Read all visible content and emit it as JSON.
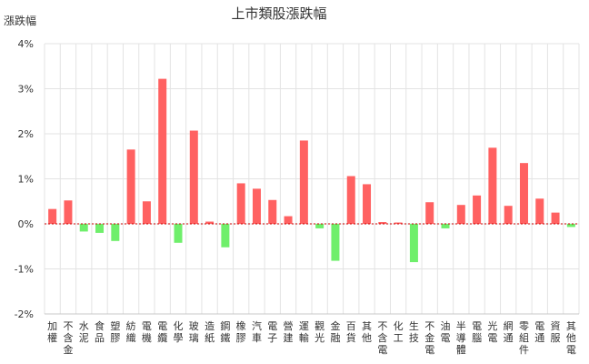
{
  "chart_data": {
    "type": "bar",
    "title": "上市類股漲跌幅",
    "ylabel": "漲跌幅",
    "xlabel": "",
    "ylim": [
      -2,
      4
    ],
    "yticks": [
      "-2%",
      "-1%",
      "0%",
      "1%",
      "2%",
      "3%",
      "4%"
    ],
    "grid": true,
    "legend": "none",
    "colors": {
      "up": "#ff6161",
      "down": "#6fef6b",
      "grid": "#e3e3e3",
      "axis": "#c8c8c8",
      "zero": "#cc0000"
    },
    "categories": [
      "加權",
      "不含金",
      "水泥",
      "食品",
      "塑膠",
      "紡織",
      "電機",
      "電纜",
      "化學",
      "玻璃",
      "造紙",
      "鋼鐵",
      "橡膠",
      "汽車",
      "電子",
      "營建",
      "運輸",
      "觀光",
      "金融",
      "百貨",
      "其他",
      "不含電",
      "化工",
      "生技",
      "不金電",
      "油電",
      "半導體",
      "電腦",
      "光電",
      "網通",
      "零組件",
      "電通",
      "資服",
      "其他電"
    ],
    "values": [
      0.33,
      0.52,
      -0.17,
      -0.2,
      -0.38,
      1.65,
      0.5,
      3.22,
      -0.42,
      2.07,
      0.05,
      -0.52,
      0.9,
      0.78,
      0.53,
      0.17,
      1.85,
      -0.1,
      -0.82,
      1.06,
      0.88,
      0.04,
      0.03,
      -0.85,
      0.48,
      -0.1,
      0.42,
      0.63,
      1.69,
      0.4,
      1.35,
      0.56,
      0.25,
      -0.07
    ]
  }
}
